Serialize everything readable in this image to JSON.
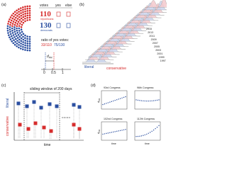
{
  "panel_a": {
    "label": "(a)",
    "headers": [
      "votes",
      "yes",
      "else"
    ],
    "rows": [
      {
        "count": "110",
        "party": "republicans"
      },
      {
        "count": "130",
        "party": "democrats"
      }
    ],
    "ratio_title": "ratio of yes votes:",
    "ratios": [
      "33/110",
      "75/130"
    ],
    "distance_label": "d",
    "distance_sub": "PR",
    "ticks": [
      "0",
      "0.5",
      "1"
    ]
  },
  "panel_b": {
    "label": "(b)",
    "left_label": "liberal",
    "right_label": "conservative",
    "years": [
      "2015",
      "2013",
      "2011",
      "2009",
      "2007",
      "2005",
      "2003",
      "2001",
      "1999",
      "1997"
    ]
  },
  "panel_c": {
    "label": "(c)",
    "title": "sliding window of 200 days",
    "top_label": "liberal",
    "bottom_label": "conservative",
    "x_label": "time"
  },
  "panel_d": {
    "label": "(d)",
    "plots": [
      "93rd Congress",
      "96th Congress",
      "102nd Congress",
      "112th Congress"
    ],
    "y_label": "d",
    "y_sub": "PR",
    "x_label": "time"
  }
}
